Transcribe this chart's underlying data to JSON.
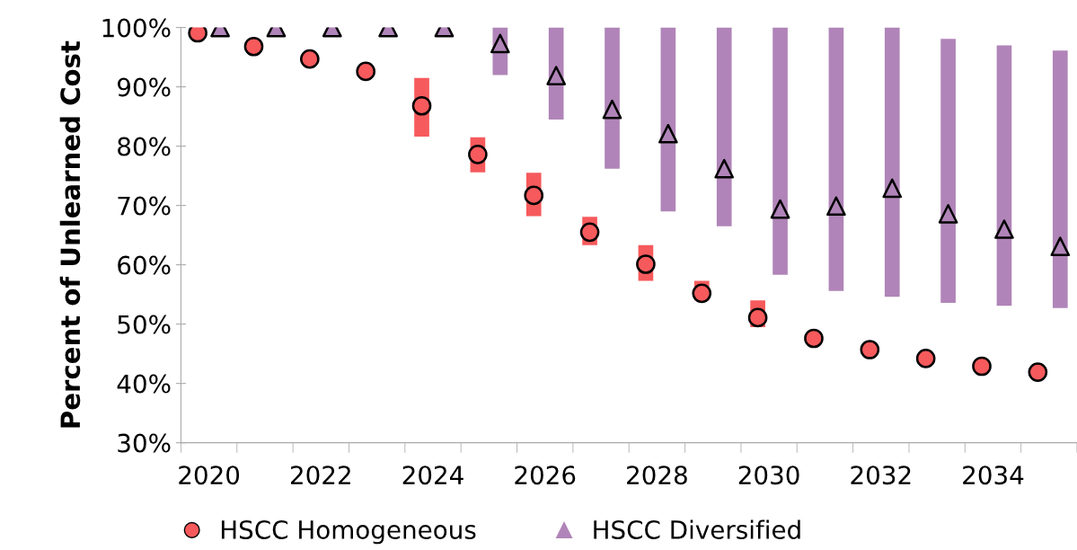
{
  "chart_data": {
    "type": "scatter",
    "ylabel": "Percent of Unlearned Cost",
    "categories": [
      "2020",
      null,
      "2022",
      null,
      "2024",
      null,
      "2026",
      null,
      "2028",
      null,
      "2030",
      null,
      "2032",
      null,
      "2034",
      null
    ],
    "series": [
      {
        "name": "HSCC Homogeneous",
        "color": "#f65a5c",
        "marker": "circle",
        "values": [
          99.1,
          96.8,
          94.7,
          92.6,
          86.8,
          78.6,
          71.7,
          65.5,
          60.1,
          55.2,
          51.1,
          47.6,
          45.7,
          44.2,
          42.9,
          41.9
        ],
        "errors": [
          null,
          null,
          null,
          null,
          [
            81.6,
            91.5
          ],
          [
            75.6,
            81.5
          ],
          [
            68.2,
            75.5
          ],
          [
            63.3,
            68.1
          ],
          [
            57.3,
            63.3
          ],
          [
            54.0,
            57.3
          ],
          [
            49.5,
            54.0
          ],
          null,
          null,
          null,
          null,
          null
        ]
      },
      {
        "name": "HSCC Diversified",
        "color": "#b084b8",
        "marker": "triangle",
        "values": [
          100,
          100,
          100,
          100,
          100,
          97.3,
          91.9,
          86.2,
          82.1,
          76.2,
          69.4,
          69.9,
          72.9,
          68.6,
          66.0,
          63.1
        ],
        "errors": [
          null,
          null,
          null,
          null,
          null,
          [
            92.0,
            100
          ],
          [
            84.5,
            100
          ],
          [
            76.2,
            100
          ],
          [
            69.0,
            100
          ],
          [
            66.5,
            100
          ],
          [
            58.3,
            100
          ],
          [
            55.6,
            100
          ],
          [
            54.6,
            100
          ],
          [
            53.6,
            98.1
          ],
          [
            53.1,
            97.0
          ],
          [
            52.7,
            96.1
          ]
        ]
      }
    ],
    "ylim": [
      30,
      100
    ],
    "yticks": [
      {
        "value": 30,
        "label": "30%"
      },
      {
        "value": 40,
        "label": "40%"
      },
      {
        "value": 50,
        "label": "50%"
      },
      {
        "value": 60,
        "label": "60%"
      },
      {
        "value": 70,
        "label": "70%"
      },
      {
        "value": 80,
        "label": "80%"
      },
      {
        "value": 90,
        "label": "90%"
      },
      {
        "value": 100,
        "label": "100%"
      }
    ],
    "grid": false,
    "legend": "bottom"
  }
}
